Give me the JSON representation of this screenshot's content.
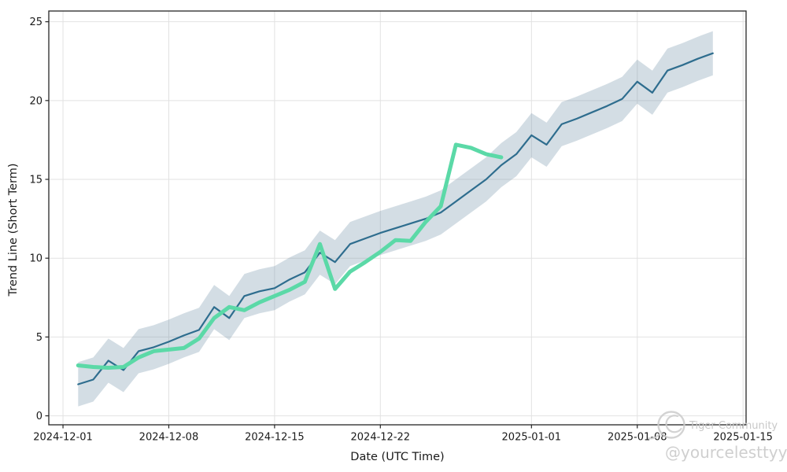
{
  "watermark": {
    "community": "Tiger Community",
    "handle": "@yourcelesttyy"
  },
  "chart_data": {
    "type": "line",
    "title": "",
    "xlabel": "Date (UTC Time)",
    "ylabel": "Trend Line (Short Term)",
    "grid": true,
    "legend": "none",
    "x_axis_epoch": "2024-12-01",
    "x_range_days": [
      -0.94,
      45.2
    ],
    "y_range": [
      -0.57,
      25.68
    ],
    "x_ticks": [
      {
        "date": "2024-12-01",
        "label": "2024-12-01"
      },
      {
        "date": "2024-12-08",
        "label": "2024-12-08"
      },
      {
        "date": "2024-12-15",
        "label": "2024-12-15"
      },
      {
        "date": "2024-12-22",
        "label": "2024-12-22"
      },
      {
        "date": "2025-01-01",
        "label": "2025-01-01"
      },
      {
        "date": "2025-01-08",
        "label": "2025-01-08"
      },
      {
        "date": "2025-01-15",
        "label": "2025-01-15"
      }
    ],
    "y_ticks": [
      0,
      5,
      10,
      15,
      20,
      25
    ],
    "colors": {
      "trend_line": "#2e6d8e",
      "confidence_band": "rgba(108,142,166,0.30)",
      "actual_line": "#5bd9a7",
      "grid_line": "#e2e2e2",
      "spine": "#262626",
      "tick_label": "#1a1a1a"
    },
    "series": [
      {
        "name": "trend-line",
        "color": "#2e6d8e",
        "line_width": 2.2,
        "band_offset": 1.4,
        "band_color": "rgba(108,142,166,0.30)",
        "dates": [
          "2024-12-02",
          "2024-12-03",
          "2024-12-04",
          "2024-12-05",
          "2024-12-06",
          "2024-12-07",
          "2024-12-08",
          "2024-12-09",
          "2024-12-10",
          "2024-12-11",
          "2024-12-12",
          "2024-12-13",
          "2024-12-14",
          "2024-12-15",
          "2024-12-16",
          "2024-12-17",
          "2024-12-18",
          "2024-12-19",
          "2024-12-20",
          "2024-12-21",
          "2024-12-22",
          "2024-12-23",
          "2024-12-24",
          "2024-12-25",
          "2024-12-26",
          "2024-12-27",
          "2024-12-28",
          "2024-12-29",
          "2024-12-30",
          "2024-12-31",
          "2025-01-01",
          "2025-01-02",
          "2025-01-03",
          "2025-01-04",
          "2025-01-05",
          "2025-01-06",
          "2025-01-07",
          "2025-01-08",
          "2025-01-09",
          "2025-01-10",
          "2025-01-11",
          "2025-01-12",
          "2025-01-13"
        ],
        "values": [
          2.0,
          2.3,
          3.5,
          2.9,
          4.1,
          4.35,
          4.7,
          5.1,
          5.45,
          6.9,
          6.2,
          7.6,
          7.9,
          8.1,
          8.65,
          9.1,
          10.35,
          9.75,
          10.9,
          11.25,
          11.6,
          11.9,
          12.2,
          12.5,
          12.9,
          13.6,
          14.3,
          15.0,
          15.9,
          16.6,
          17.8,
          17.2,
          18.5,
          18.85,
          19.25,
          19.65,
          20.1,
          21.2,
          20.5,
          21.9,
          22.25,
          22.65,
          23.0
        ]
      },
      {
        "name": "actual-line",
        "color": "#5bd9a7",
        "line_width": 5,
        "band_offset": 0,
        "dates": [
          "2024-12-02",
          "2024-12-03",
          "2024-12-04",
          "2024-12-05",
          "2024-12-06",
          "2024-12-07",
          "2024-12-08",
          "2024-12-09",
          "2024-12-10",
          "2024-12-11",
          "2024-12-12",
          "2024-12-13",
          "2024-12-14",
          "2024-12-15",
          "2024-12-16",
          "2024-12-17",
          "2024-12-18",
          "2024-12-19",
          "2024-12-20",
          "2024-12-21",
          "2024-12-22",
          "2024-12-23",
          "2024-12-24",
          "2024-12-25",
          "2024-12-26",
          "2024-12-27",
          "2024-12-28",
          "2024-12-29",
          "2024-12-30"
        ],
        "values": [
          3.2,
          3.1,
          3.05,
          3.1,
          3.7,
          4.1,
          4.2,
          4.3,
          4.9,
          6.2,
          6.9,
          6.7,
          7.2,
          7.6,
          8.0,
          8.5,
          10.9,
          8.05,
          9.15,
          9.75,
          10.4,
          11.15,
          11.1,
          12.3,
          13.3,
          17.2,
          17.0,
          16.6,
          16.4
        ]
      }
    ]
  }
}
